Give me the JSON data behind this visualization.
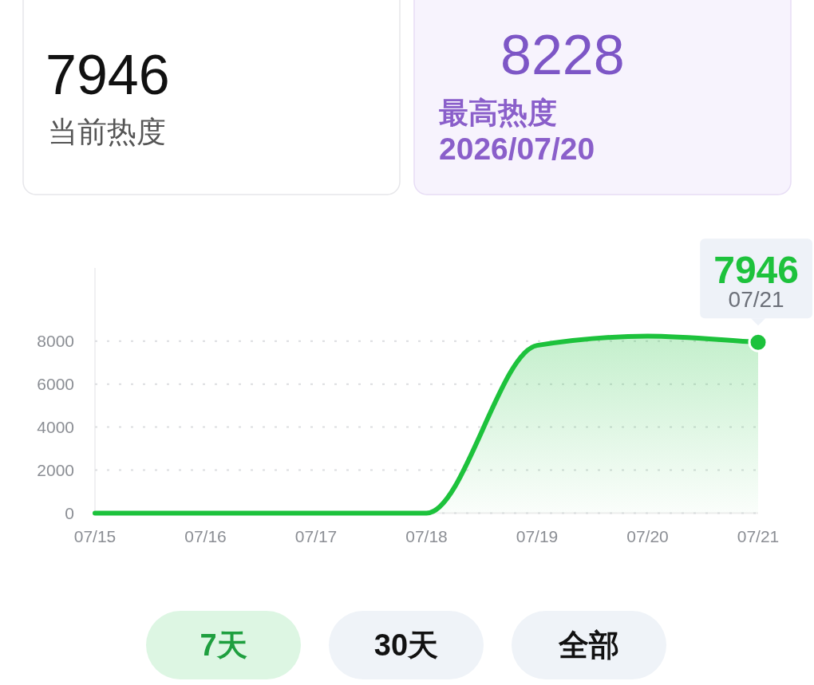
{
  "chart_data": [
    {
      "type": "other",
      "title": "7946",
      "subtitle": "当前热度"
    },
    {
      "type": "other",
      "title": "8228",
      "subtitle": "最高热度",
      "annotations": [
        "2026/07/20"
      ]
    },
    {
      "type": "area",
      "categories": [
        "07/15",
        "07/16",
        "07/17",
        "07/18",
        "07/19",
        "07/20",
        "07/21"
      ],
      "values": [
        0,
        0,
        0,
        0,
        7800,
        8228,
        7946
      ],
      "color": "#1dc23c",
      "ylim": [
        0,
        11400
      ],
      "yticks": [
        0,
        2000,
        4000,
        6000,
        8000
      ],
      "grid": "y",
      "annotations": [
        {
          "text": "7946",
          "x": "07/21",
          "y": 7946
        },
        {
          "text": "07/21",
          "x": "07/21",
          "y": 7946
        },
        "7天",
        "30天",
        "全部"
      ]
    }
  ]
}
